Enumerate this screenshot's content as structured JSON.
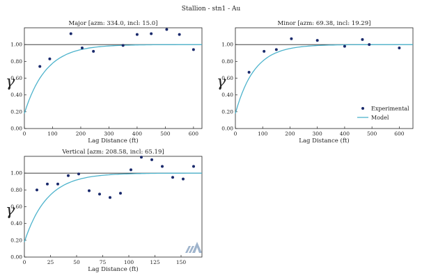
{
  "figure_title": "Stallion - stn1 - Au",
  "colors": {
    "experimental": "#1a2a6c",
    "model": "#4db3cc",
    "sill": "#222222",
    "logo": "#8fa7c4"
  },
  "icons": {
    "logo": "variogram-logo-icon"
  },
  "chart_data": [
    {
      "type": "scatter",
      "title": "Major [azm: 334.0, incl: 15.0]",
      "xlabel": "Lag Distance (ft)",
      "ylabel": "γ",
      "xlim": [
        0,
        630
      ],
      "ylim": [
        0,
        1.2
      ],
      "xticks": [
        0,
        100,
        200,
        300,
        400,
        500,
        600
      ],
      "yticks": [
        0.0,
        0.2,
        0.4,
        0.6,
        0.8,
        1.0
      ],
      "ytick_labels": [
        "0.00",
        "0.20",
        "0.40",
        "0.60",
        "0.80",
        "1.00"
      ],
      "sill": 1.0,
      "grid": false,
      "series": [
        {
          "name": "Experimental",
          "kind": "points",
          "x": [
            55,
            90,
            165,
            205,
            245,
            350,
            400,
            450,
            505,
            550,
            600
          ],
          "y": [
            0.74,
            0.83,
            1.13,
            0.96,
            0.92,
            0.99,
            1.12,
            1.13,
            1.18,
            1.12,
            0.94
          ]
        },
        {
          "name": "Model",
          "kind": "model",
          "nugget": 0.18,
          "sill": 1.0,
          "range": 230
        }
      ]
    },
    {
      "type": "scatter",
      "title": "Minor [azm: 69.38, incl: 19.29]",
      "xlabel": "Lag Distance (ft)",
      "ylabel": "γ",
      "xlim": [
        0,
        650
      ],
      "ylim": [
        0,
        1.2
      ],
      "xticks": [
        0,
        100,
        200,
        300,
        400,
        500,
        600
      ],
      "yticks": [
        0.0,
        0.2,
        0.4,
        0.6,
        0.8,
        1.0
      ],
      "ytick_labels": [
        "0.00",
        "0.20",
        "0.40",
        "0.60",
        "0.80",
        "1.00"
      ],
      "sill": 1.0,
      "grid": false,
      "legend": "bottom-right",
      "series": [
        {
          "name": "Experimental",
          "kind": "points",
          "x": [
            50,
            105,
            150,
            205,
            300,
            400,
            465,
            490,
            600
          ],
          "y": [
            0.67,
            0.92,
            0.94,
            1.07,
            1.05,
            0.98,
            1.06,
            1.0,
            0.96
          ]
        },
        {
          "name": "Model",
          "kind": "model",
          "nugget": 0.18,
          "sill": 1.0,
          "range": 210
        }
      ]
    },
    {
      "type": "scatter",
      "title": "Vertical [azm: 208.58, incl: 65.19]",
      "xlabel": "Lag Distance (ft)",
      "ylabel": "γ",
      "xlim": [
        0,
        170
      ],
      "ylim": [
        0,
        1.2
      ],
      "xticks": [
        0,
        25,
        50,
        75,
        100,
        125,
        150
      ],
      "yticks": [
        0.0,
        0.2,
        0.4,
        0.6,
        0.8,
        1.0
      ],
      "ytick_labels": [
        "0.00",
        "0.20",
        "0.40",
        "0.60",
        "0.80",
        "1.00"
      ],
      "sill": 1.0,
      "grid": false,
      "series": [
        {
          "name": "Experimental",
          "kind": "points",
          "x": [
            12,
            22,
            32,
            42,
            52,
            62,
            72,
            82,
            92,
            102,
            112,
            122,
            132,
            142,
            152,
            162
          ],
          "y": [
            0.8,
            0.87,
            0.87,
            0.97,
            0.99,
            0.79,
            0.75,
            0.71,
            0.76,
            1.04,
            1.19,
            1.16,
            1.08,
            0.95,
            0.93,
            1.08
          ]
        },
        {
          "name": "Model",
          "kind": "model",
          "nugget": 0.18,
          "sill": 1.0,
          "range": 65
        }
      ]
    }
  ]
}
